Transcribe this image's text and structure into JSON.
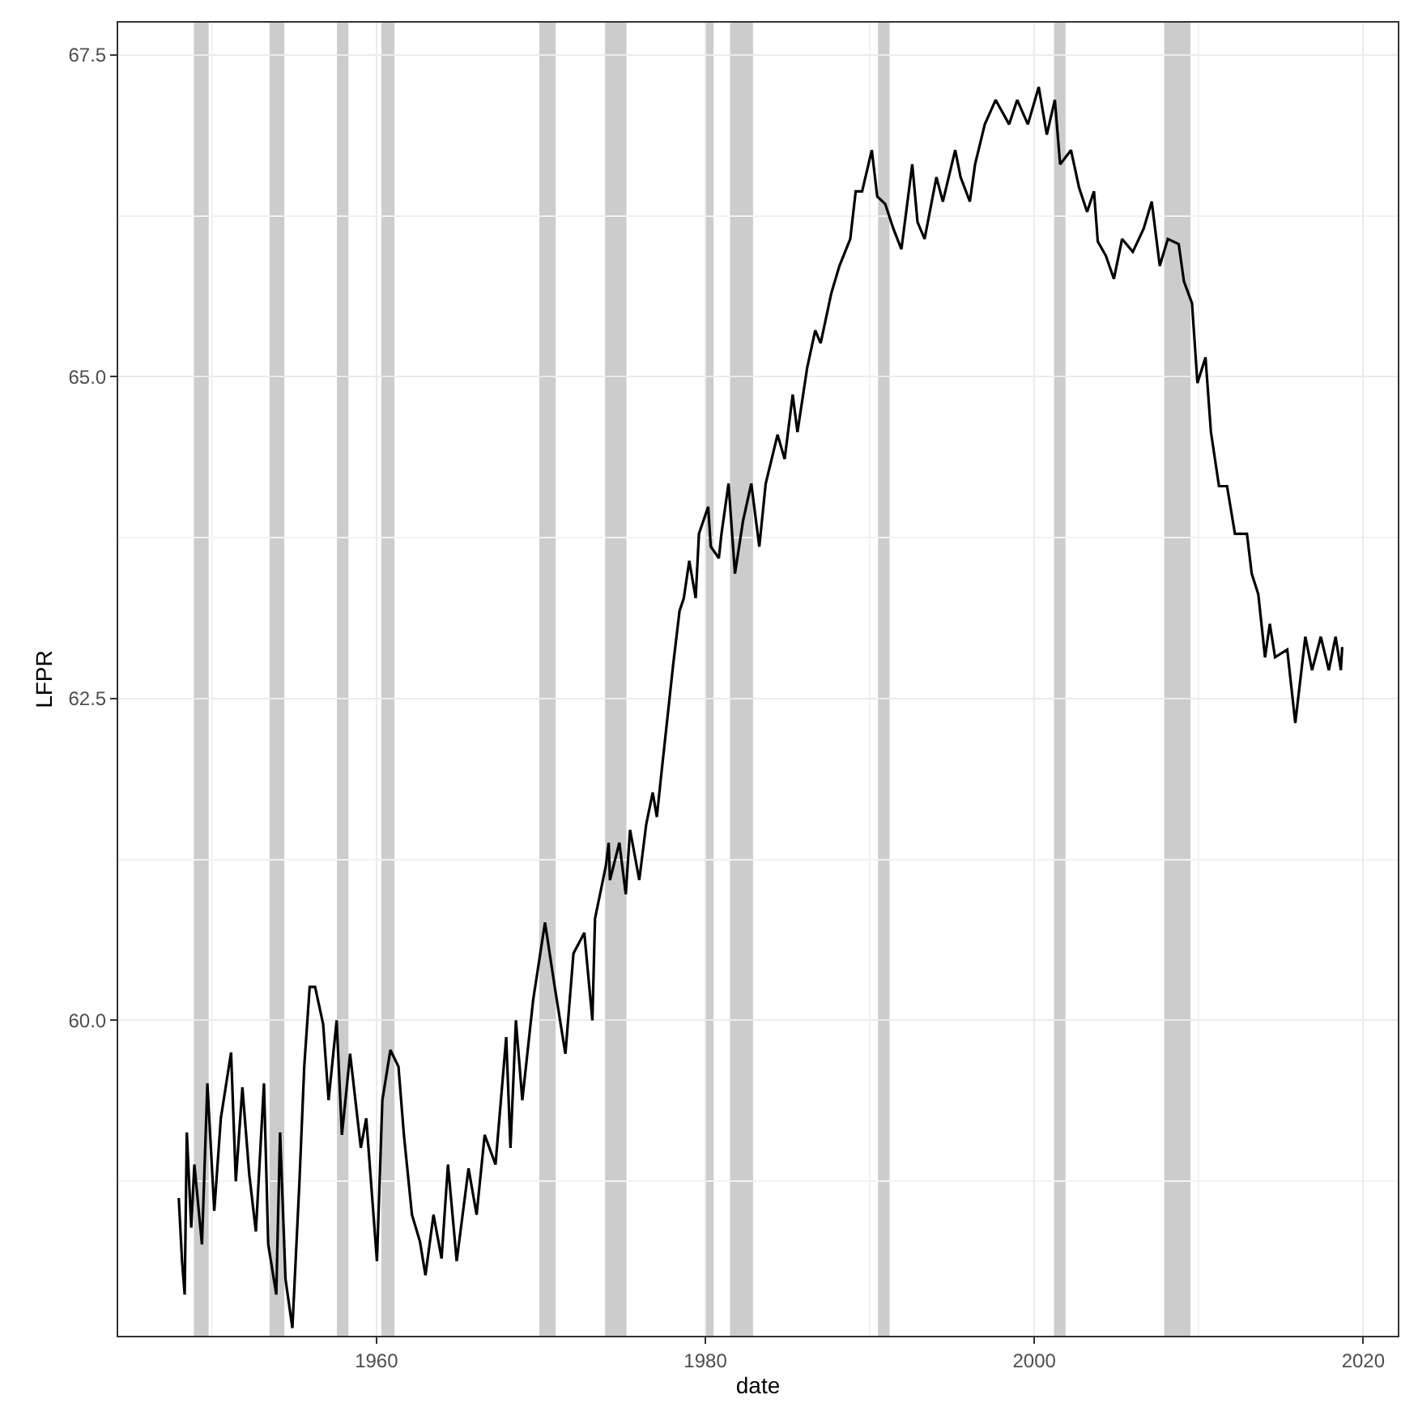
{
  "chart_data": {
    "type": "line",
    "xlabel": "date",
    "ylabel": "LFPR",
    "x": [
      1947.98,
      1948.18,
      1948.34,
      1948.47,
      1948.74,
      1948.93,
      1949.39,
      1949.72,
      1950.14,
      1950.54,
      1951.16,
      1951.45,
      1951.85,
      1952.27,
      1952.67,
      1953.16,
      1953.42,
      1953.91,
      1954.14,
      1954.47,
      1954.89,
      1955.32,
      1955.61,
      1955.94,
      1956.27,
      1956.76,
      1957.09,
      1957.58,
      1957.9,
      1958.4,
      1959.05,
      1959.38,
      1960.03,
      1960.36,
      1960.85,
      1961.34,
      1961.67,
      1962.16,
      1962.65,
      1962.98,
      1963.47,
      1963.96,
      1964.35,
      1964.88,
      1965.6,
      1966.09,
      1966.58,
      1967.24,
      1967.89,
      1968.15,
      1968.48,
      1968.87,
      1969.53,
      1970.25,
      1970.84,
      1971.49,
      1971.98,
      1972.64,
      1973.13,
      1973.29,
      1973.95,
      1974.12,
      1974.2,
      1974.77,
      1975.16,
      1975.42,
      1975.98,
      1976.4,
      1976.8,
      1977.05,
      1977.32,
      1977.71,
      1978.04,
      1978.43,
      1978.69,
      1979.02,
      1979.41,
      1979.61,
      1980.17,
      1980.33,
      1980.82,
      1980.98,
      1981.41,
      1981.8,
      1982.29,
      1982.79,
      1983.28,
      1983.67,
      1984.39,
      1984.82,
      1985.31,
      1985.6,
      1986.19,
      1986.68,
      1987.01,
      1987.66,
      1988.15,
      1988.81,
      1989.14,
      1989.53,
      1990.12,
      1990.45,
      1990.94,
      1991.43,
      1991.92,
      1992.58,
      1992.9,
      1993.33,
      1994.05,
      1994.44,
      1995.19,
      1995.52,
      1996.08,
      1996.4,
      1996.99,
      1997.65,
      1998.47,
      1998.96,
      1999.61,
      2000.27,
      2000.76,
      2001.25,
      2001.57,
      2002.23,
      2002.72,
      2003.21,
      2003.63,
      2003.86,
      2004.35,
      2004.84,
      2005.34,
      2005.99,
      2006.65,
      2007.14,
      2007.63,
      2008.12,
      2008.78,
      2009.1,
      2009.59,
      2009.92,
      2010.41,
      2010.74,
      2011.23,
      2011.72,
      2012.2,
      2012.93,
      2013.22,
      2013.62,
      2014.03,
      2014.32,
      2014.64,
      2015.38,
      2015.87,
      2016.48,
      2016.89,
      2017.42,
      2017.91,
      2018.32,
      2018.64,
      2018.72
    ],
    "series": [
      {
        "color": "#000000",
        "values": [
          58.62,
          58.13,
          57.87,
          59.13,
          58.39,
          58.88,
          58.26,
          59.51,
          58.52,
          59.24,
          59.75,
          58.75,
          59.48,
          58.8,
          58.36,
          59.51,
          58.26,
          57.87,
          59.13,
          57.99,
          57.61,
          58.75,
          59.64,
          60.26,
          60.26,
          59.97,
          59.38,
          60.0,
          59.11,
          59.74,
          59.01,
          59.24,
          58.13,
          59.38,
          59.77,
          59.64,
          59.11,
          58.49,
          58.28,
          58.02,
          58.49,
          58.15,
          58.88,
          58.13,
          58.85,
          58.49,
          59.11,
          58.88,
          59.87,
          59.01,
          60.0,
          59.38,
          60.16,
          60.76,
          60.26,
          59.74,
          60.52,
          60.68,
          60.0,
          60.79,
          61.2,
          61.38,
          61.09,
          61.38,
          60.98,
          61.48,
          61.09,
          61.52,
          61.77,
          61.58,
          61.91,
          62.37,
          62.76,
          63.18,
          63.28,
          63.57,
          63.28,
          63.78,
          63.99,
          63.68,
          63.59,
          63.78,
          64.17,
          63.47,
          63.88,
          64.17,
          63.68,
          64.17,
          64.55,
          64.36,
          64.86,
          64.57,
          65.07,
          65.36,
          65.26,
          65.65,
          65.86,
          66.07,
          66.44,
          66.44,
          66.76,
          66.4,
          66.34,
          66.15,
          65.99,
          66.65,
          66.2,
          66.07,
          66.55,
          66.36,
          66.76,
          66.55,
          66.36,
          66.65,
          66.96,
          67.15,
          66.96,
          67.15,
          66.96,
          67.25,
          66.88,
          67.15,
          66.65,
          66.76,
          66.47,
          66.28,
          66.44,
          66.05,
          65.94,
          65.76,
          66.07,
          65.97,
          66.15,
          66.36,
          65.86,
          66.07,
          66.03,
          65.74,
          65.57,
          64.95,
          65.15,
          64.57,
          64.15,
          64.15,
          63.78,
          63.78,
          63.47,
          63.31,
          62.82,
          63.08,
          62.82,
          62.88,
          62.31,
          62.98,
          62.72,
          62.98,
          62.72,
          62.98,
          62.72,
          62.9
        ]
      }
    ],
    "xlim": [
      1944.3,
      2022.1
    ],
    "ylim": [
      57.55,
      67.75
    ],
    "xticks": [
      {
        "value": 1950,
        "label": null
      },
      1960,
      1980,
      {
        "value": 1990,
        "label": null
      },
      2000,
      {
        "value": 2010,
        "label": null
      },
      2020
    ],
    "yticks": [
      {
        "value": 58.75,
        "label": null
      },
      {
        "value": 60,
        "label": "60.0"
      },
      {
        "value": 61.25,
        "label": null
      },
      {
        "value": 62.5,
        "label": "62.5"
      },
      {
        "value": 63.75,
        "label": null
      },
      {
        "value": 65,
        "label": "65.0"
      },
      {
        "value": 66.25,
        "label": null
      },
      {
        "value": 67.5,
        "label": "67.5"
      }
    ],
    "bands": [
      {
        "axis": "x",
        "from": 1948.9,
        "to": 1949.8,
        "color": "#cccccc"
      },
      {
        "axis": "x",
        "from": 1953.5,
        "to": 1954.4,
        "color": "#cccccc"
      },
      {
        "axis": "x",
        "from": 1957.6,
        "to": 1958.3,
        "color": "#cccccc"
      },
      {
        "axis": "x",
        "from": 1960.3,
        "to": 1961.1,
        "color": "#cccccc"
      },
      {
        "axis": "x",
        "from": 1969.9,
        "to": 1970.9,
        "color": "#cccccc"
      },
      {
        "axis": "x",
        "from": 1973.9,
        "to": 1975.2,
        "color": "#cccccc"
      },
      {
        "axis": "x",
        "from": 1980.0,
        "to": 1980.5,
        "color": "#cccccc"
      },
      {
        "axis": "x",
        "from": 1981.5,
        "to": 1982.9,
        "color": "#cccccc"
      },
      {
        "axis": "x",
        "from": 1990.5,
        "to": 1991.2,
        "color": "#cccccc"
      },
      {
        "axis": "x",
        "from": 2001.2,
        "to": 2001.9,
        "color": "#cccccc"
      },
      {
        "axis": "x",
        "from": 2007.9,
        "to": 2009.5,
        "color": "#cccccc"
      }
    ],
    "grid": true,
    "line_style": "solid",
    "marker": "none"
  }
}
